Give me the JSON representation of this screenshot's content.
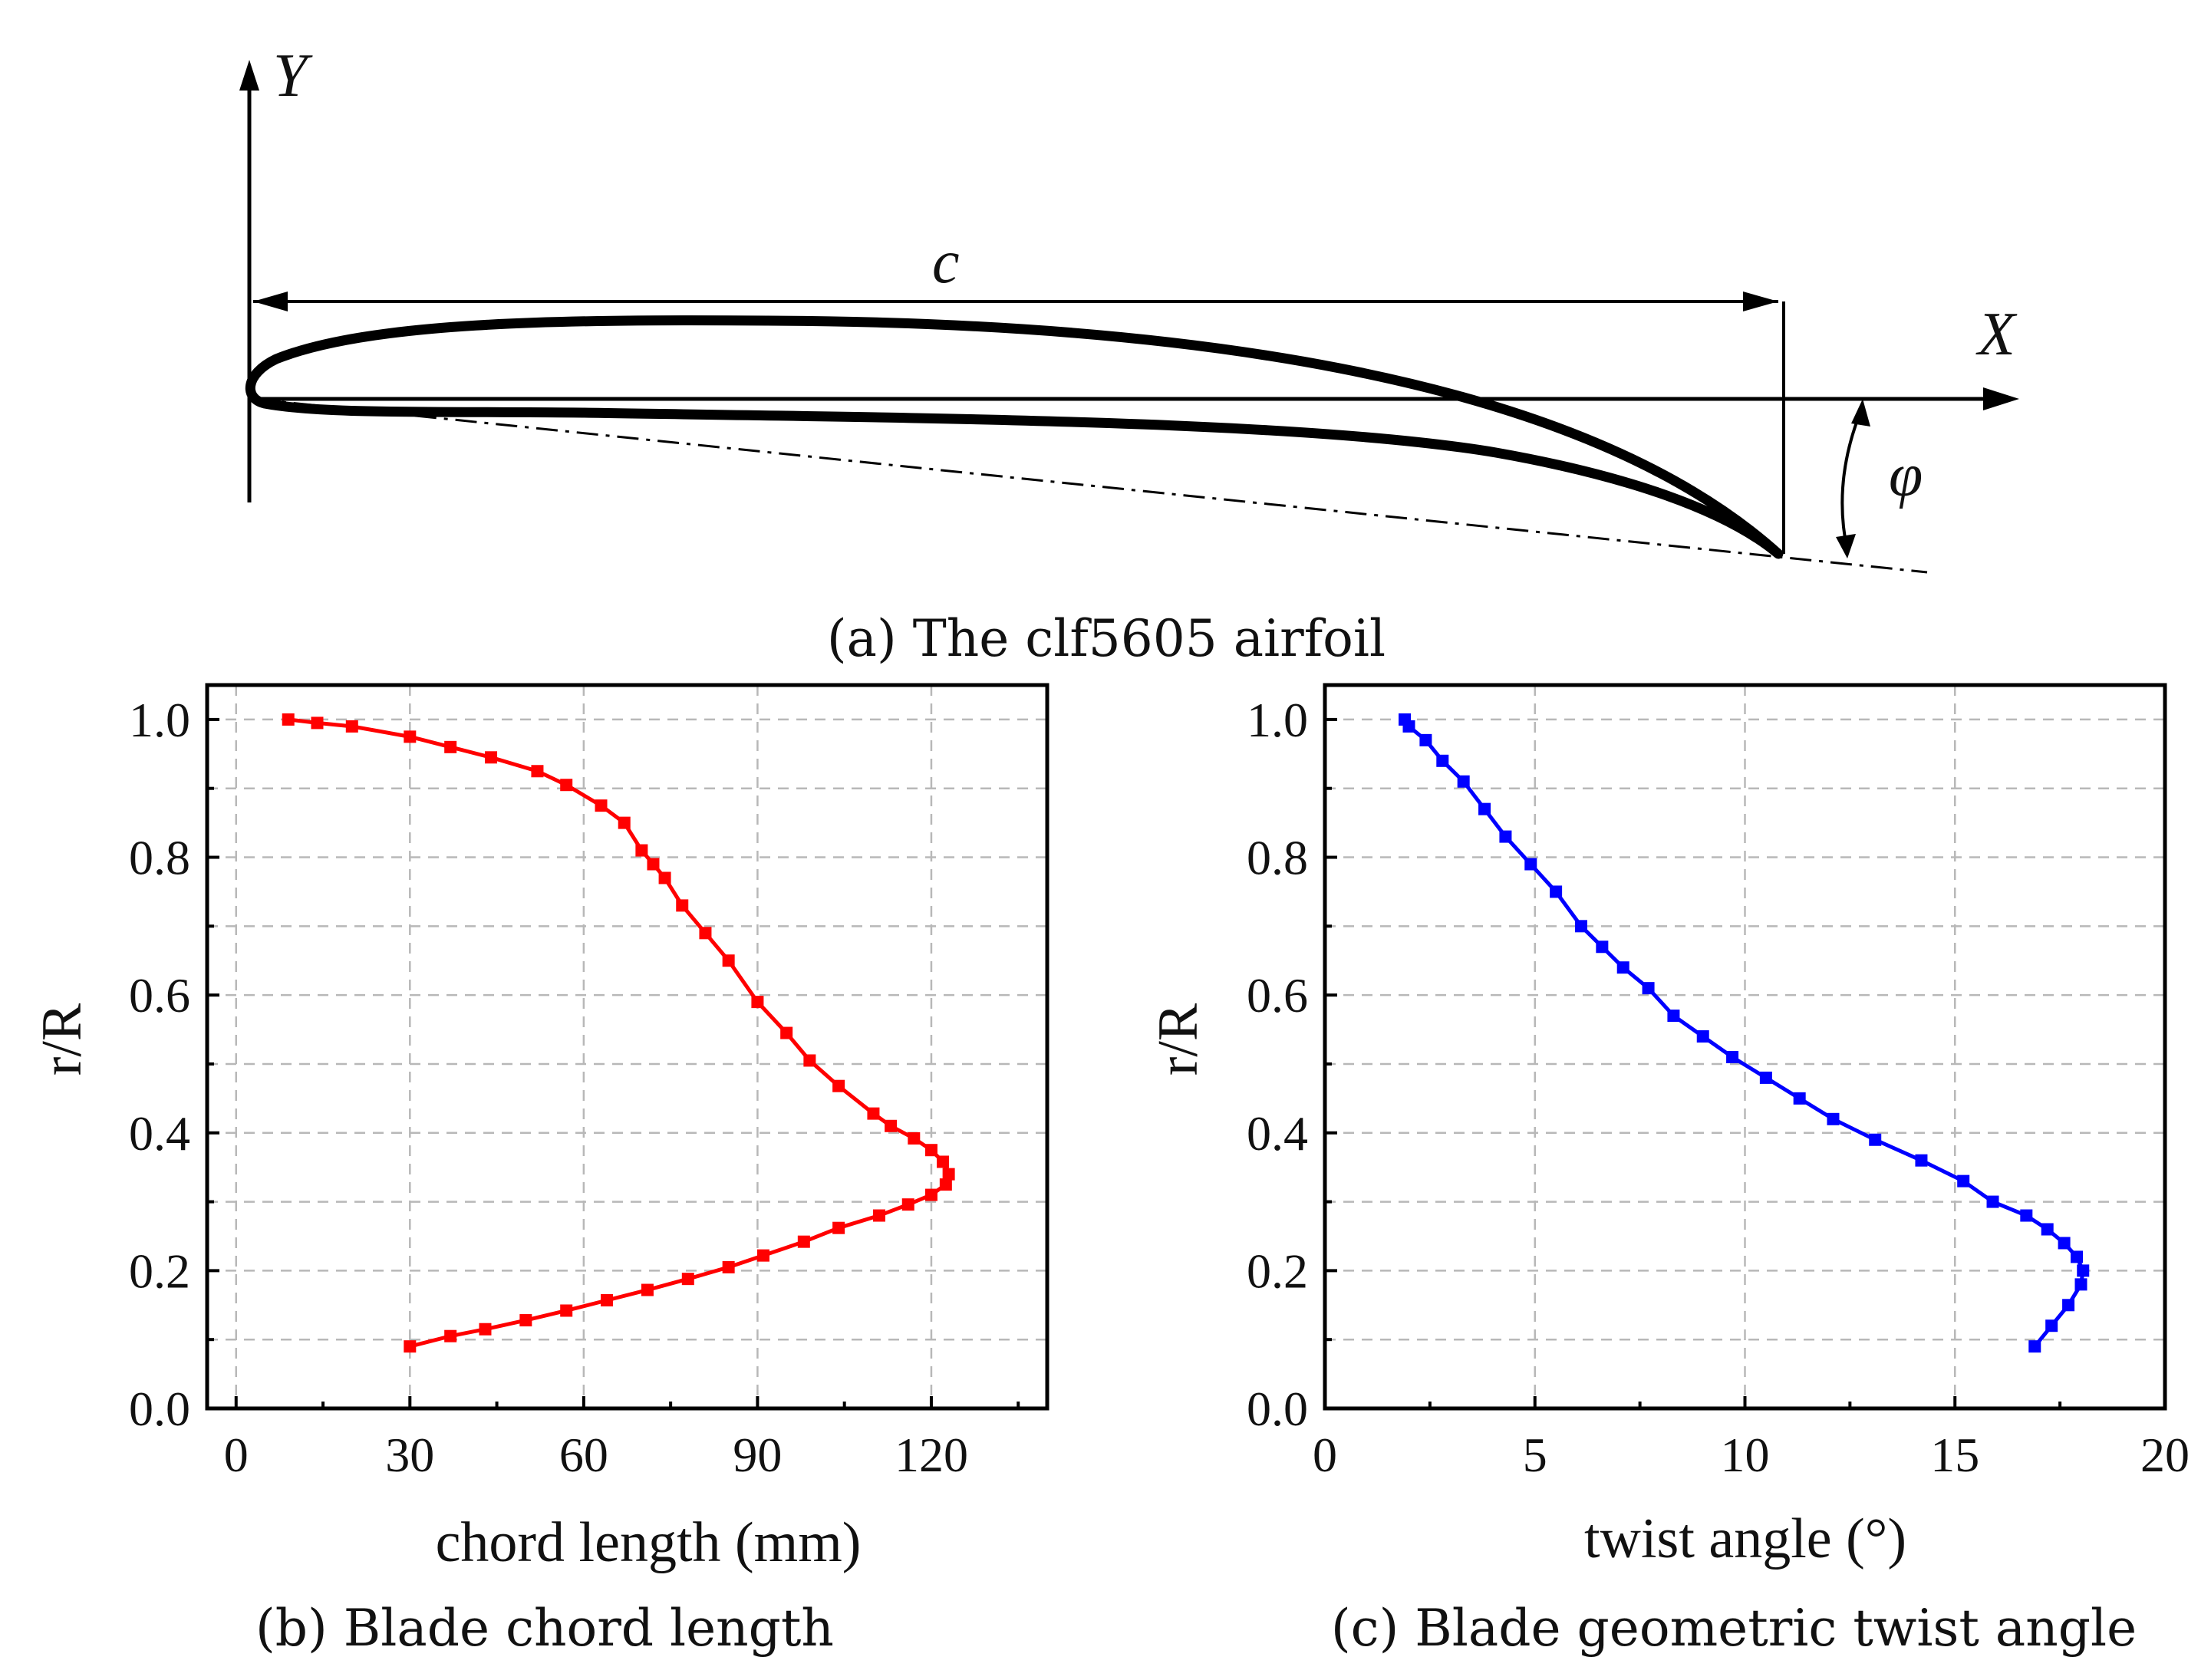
{
  "airfoil": {
    "caption": "(a) The clf5605 airfoil",
    "label_y": "Y",
    "label_x": "X",
    "label_chord": "c",
    "label_twist": "φ"
  },
  "chart_data": [
    {
      "type": "line",
      "caption": "(b) Blade chord length",
      "xlabel": "chord length (mm)",
      "ylabel": "r/R",
      "xlim": [
        -5,
        140
      ],
      "ylim": [
        0.0,
        1.05
      ],
      "xticks": [
        "0",
        "30",
        "60",
        "90",
        "120"
      ],
      "yticks": [
        "0.0",
        "0.2",
        "0.4",
        "0.6",
        "0.8",
        "1.0"
      ],
      "grid": true,
      "color": "#ff0000",
      "series": [
        {
          "name": "chord",
          "x": [
            30,
            37,
            43,
            50,
            57,
            64,
            71,
            78,
            85,
            91,
            98,
            104,
            111,
            116,
            120,
            122.5,
            123,
            122,
            120,
            117,
            113,
            110,
            104,
            99,
            95,
            90,
            85,
            81,
            77,
            74,
            72,
            70,
            67,
            63,
            57,
            52,
            44,
            37,
            30,
            20,
            14,
            9
          ],
          "y": [
            0.09,
            0.105,
            0.115,
            0.128,
            0.142,
            0.157,
            0.172,
            0.188,
            0.205,
            0.222,
            0.242,
            0.262,
            0.28,
            0.296,
            0.31,
            0.325,
            0.34,
            0.358,
            0.375,
            0.392,
            0.41,
            0.428,
            0.468,
            0.505,
            0.545,
            0.59,
            0.65,
            0.69,
            0.73,
            0.77,
            0.79,
            0.81,
            0.85,
            0.875,
            0.905,
            0.925,
            0.945,
            0.96,
            0.975,
            0.99,
            0.995,
            1.0
          ]
        }
      ]
    },
    {
      "type": "line",
      "caption": "(c) Blade geometric twist angle",
      "xlabel": "twist angle (°)",
      "ylabel": "r/R",
      "xlim": [
        0,
        20
      ],
      "ylim": [
        0.0,
        1.05
      ],
      "xticks": [
        "0",
        "5",
        "10",
        "15",
        "20"
      ],
      "yticks": [
        "0.0",
        "0.2",
        "0.4",
        "0.6",
        "0.8",
        "1.0"
      ],
      "grid": true,
      "color": "#0000ff",
      "series": [
        {
          "name": "twist",
          "x": [
            16.9,
            17.3,
            17.7,
            18.0,
            18.05,
            17.9,
            17.6,
            17.2,
            16.7,
            15.9,
            15.2,
            14.2,
            13.1,
            12.1,
            11.3,
            10.5,
            9.7,
            9.0,
            8.3,
            7.7,
            7.1,
            6.6,
            6.1,
            5.5,
            4.9,
            4.3,
            3.8,
            3.3,
            2.8,
            2.4,
            2.0,
            1.9
          ],
          "y": [
            0.09,
            0.12,
            0.15,
            0.18,
            0.2,
            0.22,
            0.24,
            0.26,
            0.28,
            0.3,
            0.33,
            0.36,
            0.39,
            0.42,
            0.45,
            0.48,
            0.51,
            0.54,
            0.57,
            0.61,
            0.64,
            0.67,
            0.7,
            0.75,
            0.79,
            0.83,
            0.87,
            0.91,
            0.94,
            0.97,
            0.99,
            1.0
          ]
        }
      ]
    }
  ]
}
